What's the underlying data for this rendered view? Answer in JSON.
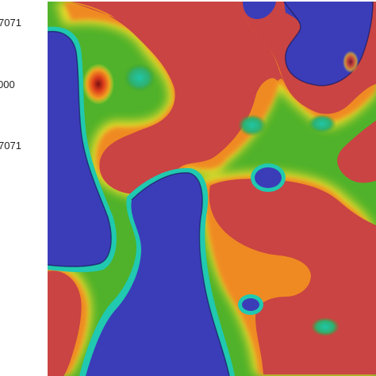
{
  "axis": {
    "ticks": [
      "7071",
      "000",
      "7071"
    ]
  },
  "colormap": {
    "name": "jet-like",
    "high": "#c94443",
    "mid_high": "#f08a1c",
    "mid": "#f0e630",
    "mid_low": "#2fae2a",
    "low_mid": "#20c9b0",
    "low": "#3b3db8",
    "boundary_dark": "#1a1a60"
  },
  "field": {
    "description_visible": ""
  }
}
